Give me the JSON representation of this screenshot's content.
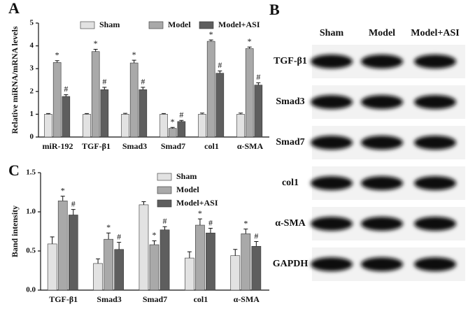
{
  "chart_data": [
    {
      "type": "bar",
      "panel_label": "A",
      "ylabel": "Relative miRNA/mRNA levels",
      "categories": [
        "miR-192",
        "TGF-β1",
        "Smad3",
        "Smad7",
        "col1",
        "α-SMA"
      ],
      "ylim": [
        0,
        5
      ],
      "yticks": [
        0,
        1,
        2,
        3,
        4,
        5
      ],
      "legend": "top",
      "series": [
        {
          "name": "Sham",
          "color": "#e2e2e2",
          "values": [
            1,
            1,
            1,
            1,
            1,
            1
          ],
          "errors": [
            0.03,
            0.03,
            0.04,
            0.03,
            0.05,
            0.05
          ],
          "annotations": [
            null,
            null,
            null,
            null,
            null,
            null
          ]
        },
        {
          "name": "Model",
          "color": "#a9a9a9",
          "values": [
            3.27,
            3.75,
            3.25,
            0.38,
            4.2,
            3.88
          ],
          "errors": [
            0.08,
            0.1,
            0.12,
            0.04,
            0.06,
            0.07
          ],
          "annotations": [
            "*",
            "*",
            "*",
            "*",
            "*",
            "*"
          ]
        },
        {
          "name": "Model+ASI",
          "color": "#5e5e5e",
          "values": [
            1.78,
            2.08,
            2.08,
            0.68,
            2.8,
            2.28
          ],
          "errors": [
            0.08,
            0.1,
            0.1,
            0.05,
            0.1,
            0.1
          ],
          "annotations": [
            "#",
            "#",
            "#",
            "#",
            "#",
            "#"
          ]
        }
      ]
    },
    {
      "type": "bar",
      "panel_label": "C",
      "ylabel": "Band intensity",
      "categories": [
        "TGF-β1",
        "Smad3",
        "Smad7",
        "col1",
        "α-SMA"
      ],
      "ylim": [
        0,
        1.5
      ],
      "yticks": [
        {
          "value": 0,
          "label": "0.0"
        },
        0.5,
        {
          "value": 1,
          "label": "1.0"
        },
        {
          "value": 1.5,
          "label": "1.5"
        }
      ],
      "legend": "right",
      "series": [
        {
          "name": "Sham",
          "color": "#e2e2e2",
          "values": [
            0.59,
            0.34,
            1.09,
            0.41,
            0.44
          ],
          "errors": [
            0.09,
            0.06,
            0.04,
            0.08,
            0.08
          ],
          "annotations": [
            null,
            null,
            null,
            null,
            null
          ]
        },
        {
          "name": "Model",
          "color": "#a9a9a9",
          "values": [
            1.14,
            0.65,
            0.58,
            0.83,
            0.72
          ],
          "errors": [
            0.06,
            0.08,
            0.05,
            0.08,
            0.06
          ],
          "annotations": [
            "*",
            "*",
            "*",
            "*",
            "*"
          ]
        },
        {
          "name": "Model+ASI",
          "color": "#5e5e5e",
          "values": [
            0.96,
            0.52,
            0.77,
            0.73,
            0.56
          ],
          "errors": [
            0.07,
            0.09,
            0.04,
            0.06,
            0.06
          ],
          "annotations": [
            "#",
            "#",
            "#",
            "#",
            "#"
          ]
        }
      ]
    }
  ],
  "blot": {
    "panel_label": "B",
    "columns": [
      "Sham",
      "Model",
      "Model+ASI"
    ],
    "rows": [
      "TGF-β1",
      "Smad3",
      "Smad7",
      "col1",
      "α-SMA",
      "GAPDH"
    ]
  }
}
